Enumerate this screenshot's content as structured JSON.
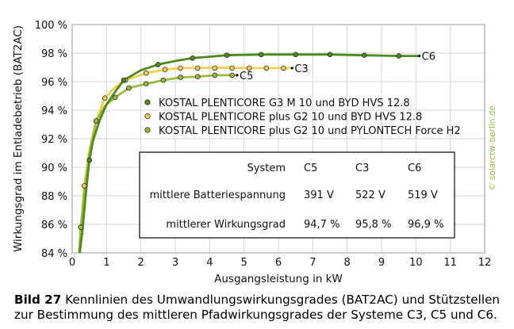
{
  "chart_data": {
    "type": "line",
    "xlabel": "Ausgangsleistung in kW",
    "ylabel": "Wirkungsgrad im Entladebetrieb (BAT2AC)",
    "xlim": [
      0,
      12
    ],
    "ylim": [
      84,
      100
    ],
    "x_ticks": [
      "0",
      "1",
      "2",
      "3",
      "4",
      "5",
      "6",
      "7",
      "8",
      "9",
      "10",
      "11",
      "12"
    ],
    "y_ticks": [
      "84 %",
      "86 %",
      "88 %",
      "90 %",
      "92 %",
      "94 %",
      "96 %",
      "98 %",
      "100 %"
    ],
    "grid": true,
    "watermark": "© solarctw-berlin.de",
    "series": [
      {
        "name": "KOSTAL PLENTICORE G3 M 10 und BYD HVS 12.8",
        "tag": "C6",
        "color": "#4e8a1f",
        "points": [
          [
            0.5,
            90.5
          ],
          [
            1.5,
            96.1
          ],
          [
            2.5,
            97.2
          ],
          [
            3.5,
            97.65
          ],
          [
            4.5,
            97.85
          ],
          [
            5.5,
            97.9
          ],
          [
            6.5,
            97.9
          ],
          [
            7.5,
            97.9
          ],
          [
            8.5,
            97.85
          ],
          [
            9.5,
            97.8
          ]
        ],
        "curve": [
          [
            0.22,
            84
          ],
          [
            0.3,
            85.6
          ],
          [
            0.4,
            88.2
          ],
          [
            0.5,
            90.5
          ],
          [
            0.6,
            91.8
          ],
          [
            0.8,
            93.3
          ],
          [
            1.0,
            94.4
          ],
          [
            1.25,
            95.3
          ],
          [
            1.5,
            96.1
          ],
          [
            2.0,
            96.8
          ],
          [
            2.5,
            97.2
          ],
          [
            3.0,
            97.45
          ],
          [
            3.5,
            97.65
          ],
          [
            4.0,
            97.75
          ],
          [
            4.5,
            97.85
          ],
          [
            5.0,
            97.88
          ],
          [
            5.5,
            97.9
          ],
          [
            6.5,
            97.9
          ],
          [
            7.5,
            97.9
          ],
          [
            8.5,
            97.85
          ],
          [
            9.5,
            97.8
          ],
          [
            10.1,
            97.8
          ]
        ]
      },
      {
        "name": "KOSTAL PLENTICORE plus G2 10 und BYD HVS 12.8",
        "tag": "C3",
        "color": "#f2d04a",
        "points": [
          [
            0.35,
            88.7
          ],
          [
            0.7,
            93.25
          ],
          [
            0.95,
            94.85
          ],
          [
            1.55,
            96.1
          ],
          [
            2.15,
            96.6
          ],
          [
            2.7,
            96.85
          ],
          [
            3.15,
            96.95
          ],
          [
            3.65,
            96.95
          ],
          [
            4.15,
            96.95
          ],
          [
            4.65,
            96.95
          ],
          [
            5.15,
            96.95
          ],
          [
            5.65,
            96.95
          ],
          [
            6.15,
            96.95
          ]
        ],
        "curve": [
          [
            0.22,
            84
          ],
          [
            0.28,
            86.3
          ],
          [
            0.35,
            88.7
          ],
          [
            0.5,
            91.2
          ],
          [
            0.7,
            93.25
          ],
          [
            0.95,
            94.85
          ],
          [
            1.25,
            95.6
          ],
          [
            1.55,
            96.1
          ],
          [
            2.15,
            96.6
          ],
          [
            2.7,
            96.85
          ],
          [
            3.15,
            96.95
          ],
          [
            4.15,
            96.98
          ],
          [
            5.15,
            96.95
          ],
          [
            6.15,
            96.95
          ],
          [
            6.4,
            96.95
          ]
        ]
      },
      {
        "name": "KOSTAL PLENTICORE plus G2 10 und PYLONTECH Force H2",
        "tag": "C5",
        "color": "#9dba3a",
        "points": [
          [
            0.25,
            85.8
          ],
          [
            0.7,
            93.25
          ],
          [
            1.25,
            94.9
          ],
          [
            1.65,
            95.55
          ],
          [
            2.15,
            95.85
          ],
          [
            2.65,
            96.1
          ],
          [
            3.15,
            96.3
          ],
          [
            3.65,
            96.35
          ],
          [
            4.15,
            96.45
          ],
          [
            4.65,
            96.45
          ]
        ],
        "curve": [
          [
            0.2,
            84
          ],
          [
            0.25,
            85.8
          ],
          [
            0.35,
            88.3
          ],
          [
            0.5,
            91.0
          ],
          [
            0.7,
            93.25
          ],
          [
            0.95,
            94.3
          ],
          [
            1.25,
            94.9
          ],
          [
            1.65,
            95.55
          ],
          [
            2.15,
            95.85
          ],
          [
            2.65,
            96.1
          ],
          [
            3.15,
            96.3
          ],
          [
            3.65,
            96.35
          ],
          [
            4.15,
            96.45
          ],
          [
            4.65,
            96.45
          ],
          [
            4.8,
            96.45
          ]
        ]
      }
    ],
    "table": {
      "header": [
        "System",
        "C5",
        "C3",
        "C6"
      ],
      "rows": [
        [
          "mittlere Batteriespannung",
          "391 V",
          "522 V",
          "519 V"
        ],
        [
          "mittlerer Wirkungsgrad",
          "94,7 %",
          "95,8 %",
          "96,9 %"
        ]
      ]
    }
  },
  "caption": {
    "label": "Bild 27",
    "text": "Kennlinien des Umwandlungswirkungsgrades (BAT2AC) und Stützstellen zur Bestimmung des mittleren Pfadwirkungsgrades der Systeme C3, C5 und C6."
  }
}
